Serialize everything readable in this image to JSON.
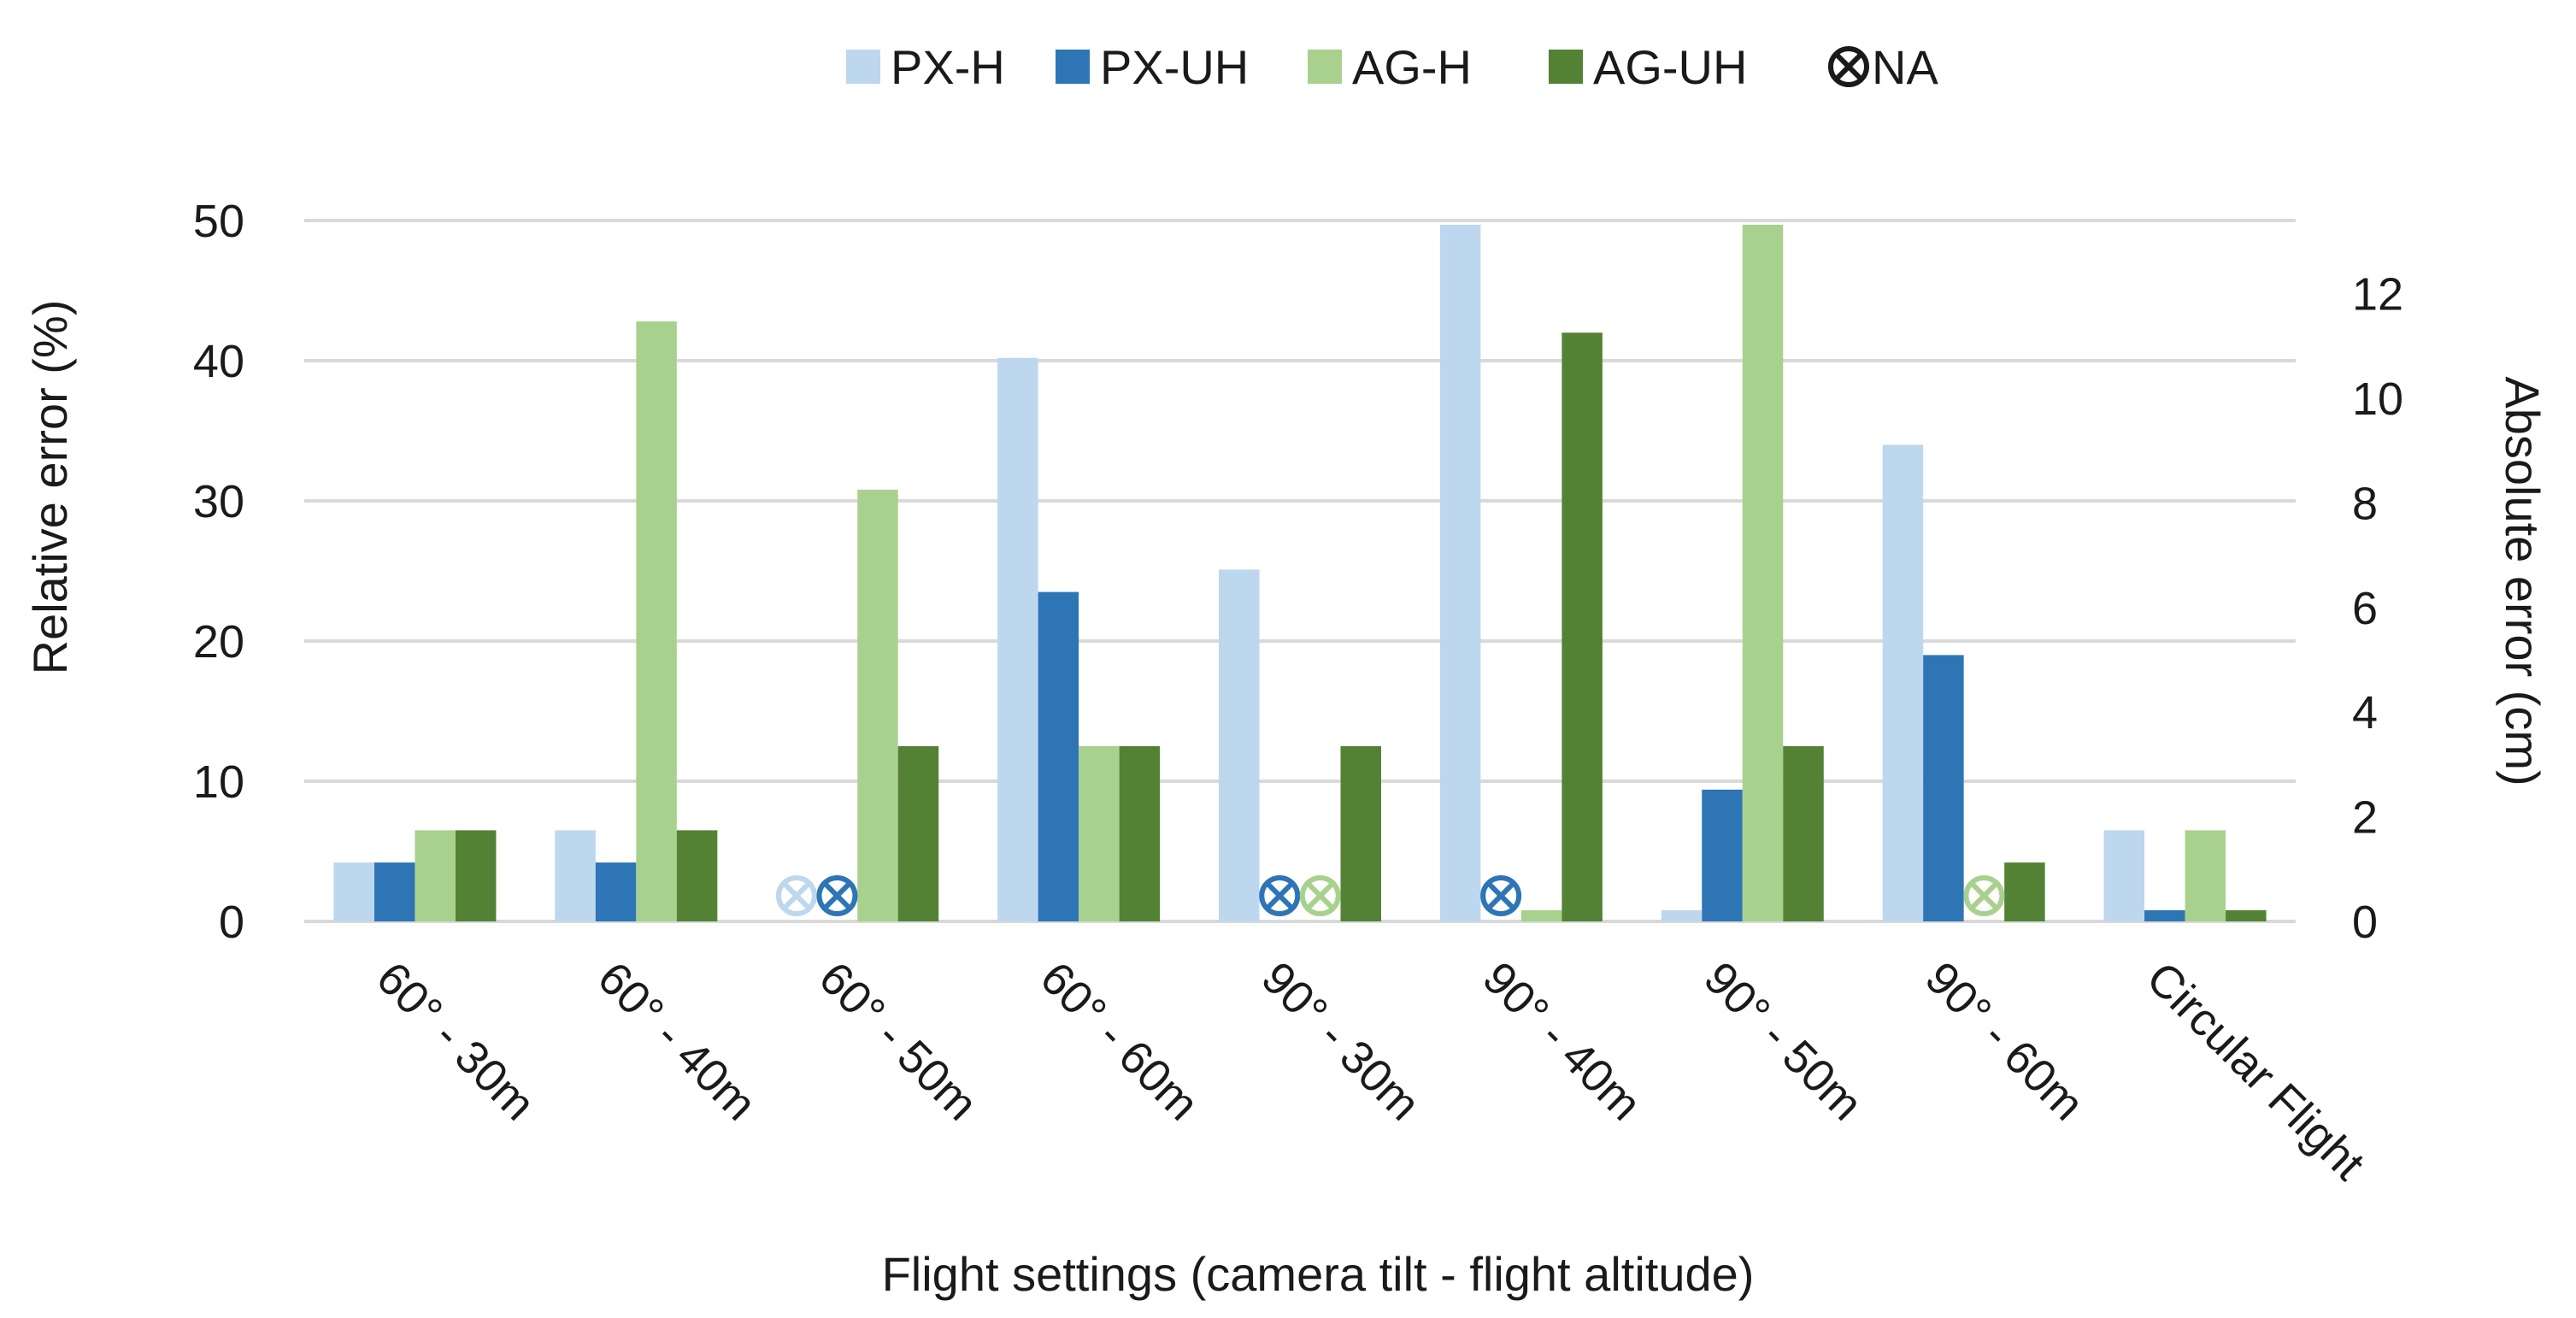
{
  "chart_data": {
    "type": "bar",
    "categories": [
      "60° - 30m",
      "60° - 40m",
      "60° - 50m",
      "60° - 60m",
      "90° - 30m",
      "90° - 40m",
      "90° - 50m",
      "90° - 60m",
      "Circular Flight"
    ],
    "series": [
      {
        "name": "PX-H",
        "color": "#bdd7ee",
        "values": [
          4.2,
          6.5,
          null,
          40.2,
          25.1,
          49.7,
          0.8,
          34.0,
          6.5
        ]
      },
      {
        "name": "PX-UH",
        "color": "#2e75b6",
        "values": [
          4.2,
          4.2,
          null,
          23.5,
          null,
          null,
          9.4,
          19.0,
          0.8
        ]
      },
      {
        "name": "AG-H",
        "color": "#a9d18e",
        "values": [
          6.5,
          42.8,
          30.8,
          12.5,
          null,
          0.8,
          49.7,
          null,
          6.5
        ]
      },
      {
        "name": "AG-UH",
        "color": "#548235",
        "values": [
          6.5,
          6.5,
          12.5,
          12.5,
          12.5,
          42.0,
          12.5,
          4.2,
          0.8
        ]
      }
    ],
    "na_marker": {
      "label": "NA",
      "symbol": "⊗",
      "color": "#1a1a1a"
    },
    "na_points": [
      {
        "category": 2,
        "series": 0
      },
      {
        "category": 2,
        "series": 1
      },
      {
        "category": 4,
        "series": 1
      },
      {
        "category": 4,
        "series": 2
      },
      {
        "category": 5,
        "series": 1
      },
      {
        "category": 7,
        "series": 2
      }
    ],
    "xlabel": "Flight settings (camera tilt - flight altitude)",
    "ylabel": "Relative error (%)",
    "y2label": "Absolute error (cm)",
    "ylim": [
      0,
      50
    ],
    "yticks": [
      0,
      10,
      20,
      30,
      40,
      50
    ],
    "y2lim": [
      0,
      13.4
    ],
    "y2ticks": [
      0,
      2,
      4,
      6,
      8,
      10,
      12
    ],
    "grid": true,
    "legend": "top-center",
    "colors": {
      "gridline": "#d9d9d9",
      "text": "#1a1a1a"
    }
  }
}
